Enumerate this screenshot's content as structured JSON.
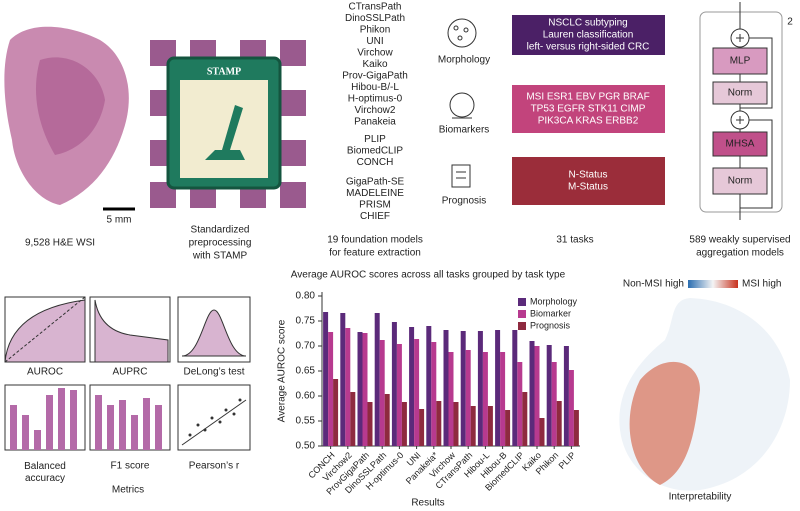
{
  "panels": {
    "wsi": {
      "scale_bar": "5 mm",
      "caption": "9,528 H&E WSI"
    },
    "preprocessing": {
      "logo": "STAMP",
      "caption": [
        "Standardized",
        "preprocessing",
        "with STAMP"
      ]
    },
    "feature_extraction": {
      "models": [
        "CTransPath",
        "DinoSSLPath",
        "Phikon",
        "UNI",
        "Virchow",
        "Kaiko",
        "Prov-GigaPath",
        "Hibou-B/-L",
        "H-optimus-0",
        "Virchow2",
        "Panakeia",
        "PLIP",
        "BiomedCLIP",
        "CONCH",
        "GigaPath-SE",
        "MADELEINE",
        "PRISM",
        "CHIEF"
      ],
      "caption": [
        "19 foundation models",
        "for feature extraction"
      ]
    },
    "tasks": {
      "types": [
        "Morphology",
        "Biomarkers",
        "Prognosis"
      ],
      "boxes": [
        [
          "NSCLC subtyping",
          "Lauren classification",
          "left- versus right-sided CRC"
        ],
        [
          "MSI ESR1 EBV PGR BRAF",
          "TP53 EGFR STK11 CIMP",
          "PIK3CA KRAS ERBB2"
        ],
        [
          "N-Status",
          "M-Status"
        ]
      ],
      "caption": "31 tasks"
    },
    "aggregation": {
      "blocks": [
        "MLP",
        "Norm",
        "MHSA",
        "Norm"
      ],
      "repeat": "2",
      "caption": [
        "589 weakly supervised",
        "aggregation models"
      ]
    },
    "metrics": {
      "plots": [
        "AUROC",
        "AUPRC",
        "DeLong’s test",
        "Balanced accuracy",
        "F1 score",
        "Pearson’s r"
      ],
      "caption": "Metrics"
    },
    "results_caption": "Results",
    "interpretability": {
      "legend": [
        "Non-MSI high",
        "MSI high"
      ],
      "caption": "Interpretability"
    }
  },
  "chart_data": {
    "type": "bar",
    "title": "Average AUROC scores across all tasks grouped by task type",
    "y_label": "Average AUROC score",
    "categories": [
      "CONCH",
      "Virchow2",
      "ProvGigaPath",
      "DinoSSLPath",
      "H-optimus-0",
      "UNI",
      "Panakeia*",
      "Virchow",
      "CTransPath",
      "Hibou-L",
      "Hibou-B",
      "BiomedCLIP",
      "Kaiko",
      "Phikon",
      "PLIP"
    ],
    "series": [
      {
        "name": "Morphology",
        "color": "#5b2a7a",
        "values": [
          0.768,
          0.766,
          0.728,
          0.766,
          0.748,
          0.738,
          0.74,
          0.732,
          0.73,
          0.73,
          0.732,
          0.732,
          0.71,
          0.702,
          0.7
        ]
      },
      {
        "name": "Biomarker",
        "color": "#b73a8f",
        "values": [
          0.728,
          0.736,
          0.726,
          0.712,
          0.704,
          0.714,
          0.708,
          0.688,
          0.692,
          0.688,
          0.688,
          0.668,
          0.7,
          0.668,
          0.652
        ]
      },
      {
        "name": "Prognosis",
        "color": "#8e2a3f",
        "values": [
          0.634,
          0.608,
          0.588,
          0.604,
          0.588,
          0.574,
          0.59,
          0.588,
          0.58,
          0.58,
          0.572,
          0.608,
          0.556,
          0.59,
          0.572
        ]
      }
    ],
    "ylim": [
      0.5,
      0.8
    ],
    "yticks": [
      {
        "value": 0.5,
        "label": "0.50"
      },
      0.55,
      {
        "value": 0.6,
        "label": "0.60"
      },
      0.65,
      {
        "value": 0.7,
        "label": "0.70"
      },
      0.75,
      {
        "value": 0.8,
        "label": "0.80"
      }
    ],
    "legend": "upper-right"
  }
}
